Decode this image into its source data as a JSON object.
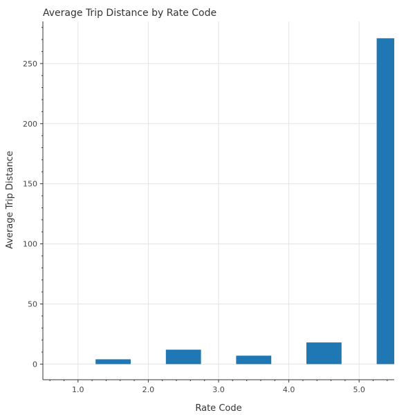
{
  "chart_data": {
    "type": "bar",
    "title": "Average Trip Distance by Rate Code",
    "xlabel": "Rate Code",
    "ylabel": "Average Trip Distance",
    "categories": [
      "1.0",
      "2.0",
      "3.0",
      "4.0",
      "5.0"
    ],
    "bins": [
      {
        "x_start": 1.25,
        "x_end": 1.75,
        "value": 4
      },
      {
        "x_start": 2.25,
        "x_end": 2.75,
        "value": 12
      },
      {
        "x_start": 3.25,
        "x_end": 3.75,
        "value": 7
      },
      {
        "x_start": 4.25,
        "x_end": 4.75,
        "value": 18
      },
      {
        "x_start": 5.25,
        "x_end": 5.5,
        "value": 271
      }
    ],
    "xlim": [
      0.5,
      5.5
    ],
    "ylim": [
      -13,
      285
    ],
    "x_ticks": [
      "1.0",
      "2.0",
      "3.0",
      "4.0",
      "5.0"
    ],
    "y_ticks": [
      "0",
      "50",
      "100",
      "150",
      "200",
      "250"
    ],
    "grid": true,
    "bar_color": "#1f77b4"
  }
}
